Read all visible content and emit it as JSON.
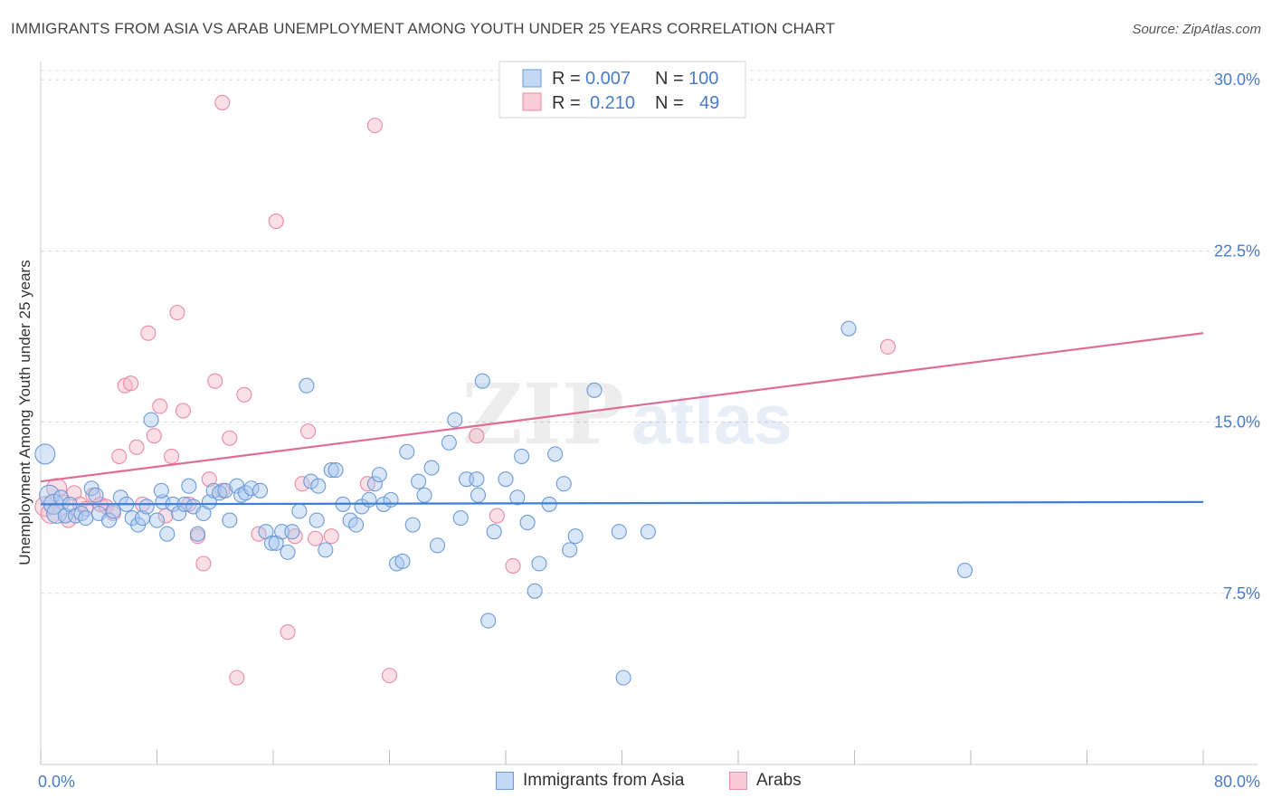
{
  "title": "IMMIGRANTS FROM ASIA VS ARAB UNEMPLOYMENT AMONG YOUTH UNDER 25 YEARS CORRELATION CHART",
  "source": "Source: ZipAtlas.com",
  "colors": {
    "blue_fill": "#a9c8f0",
    "blue_stroke": "#6e9bd6",
    "blue_line": "#3f7fd4",
    "pink_fill": "#f7b7c9",
    "pink_stroke": "#e88aa6",
    "pink_line": "#e06c96",
    "axis_text": "#4a7cc8"
  },
  "legend_top": {
    "row1": {
      "r_label": "R =",
      "r_value": "0.007",
      "n_label": "N =",
      "n_value": "100"
    },
    "row2": {
      "r_label": "R =",
      "r_value": "0.210",
      "n_label": "N =",
      "n_value": "49"
    }
  },
  "chart_data": {
    "type": "scatter",
    "title": "IMMIGRANTS FROM ASIA VS ARAB UNEMPLOYMENT AMONG YOUTH UNDER 25 YEARS CORRELATION CHART",
    "xlabel": "",
    "ylabel": "Unemployment Among Youth under 25 years",
    "xlim": [
      0,
      80
    ],
    "ylim": [
      0,
      30.8
    ],
    "x_tick_labels": [
      "0.0%",
      "80.0%"
    ],
    "y_tick_values": [
      7.5,
      15.0,
      22.5,
      30.0
    ],
    "y_tick_labels": [
      "7.5%",
      "15.0%",
      "22.5%",
      "30.0%"
    ],
    "watermark": "ZIPatlas",
    "series": [
      {
        "name": "Immigrants from Asia",
        "color": "blue",
        "R": 0.007,
        "N": 100,
        "trend": {
          "x": [
            0,
            80
          ],
          "y": [
            11.4,
            11.5
          ]
        },
        "points": [
          [
            0.3,
            13.6
          ],
          [
            0.6,
            11.8
          ],
          [
            0.9,
            11.4
          ],
          [
            1.1,
            11.0
          ],
          [
            1.4,
            11.7
          ],
          [
            1.7,
            10.9
          ],
          [
            2.0,
            11.4
          ],
          [
            2.4,
            10.9
          ],
          [
            2.8,
            11.0
          ],
          [
            3.1,
            10.8
          ],
          [
            3.5,
            12.1
          ],
          [
            3.8,
            11.8
          ],
          [
            4.0,
            11.0
          ],
          [
            4.7,
            10.7
          ],
          [
            5.0,
            11.1
          ],
          [
            5.5,
            11.7
          ],
          [
            5.9,
            11.4
          ],
          [
            6.3,
            10.8
          ],
          [
            6.7,
            10.5
          ],
          [
            7.0,
            10.8
          ],
          [
            7.3,
            11.3
          ],
          [
            7.6,
            15.1
          ],
          [
            8.0,
            10.7
          ],
          [
            8.4,
            11.5
          ],
          [
            8.7,
            10.1
          ],
          [
            9.1,
            11.4
          ],
          [
            9.5,
            11.0
          ],
          [
            9.9,
            11.4
          ],
          [
            10.2,
            12.2
          ],
          [
            10.5,
            11.3
          ],
          [
            10.8,
            10.1
          ],
          [
            11.2,
            11.0
          ],
          [
            11.6,
            11.5
          ],
          [
            11.9,
            12.0
          ],
          [
            12.3,
            11.9
          ],
          [
            12.7,
            12.0
          ],
          [
            13.0,
            10.7
          ],
          [
            13.5,
            12.2
          ],
          [
            13.8,
            11.8
          ],
          [
            14.1,
            11.9
          ],
          [
            14.5,
            12.1
          ],
          [
            15.1,
            12.0
          ],
          [
            15.5,
            10.2
          ],
          [
            15.9,
            9.7
          ],
          [
            16.2,
            9.7
          ],
          [
            16.6,
            10.2
          ],
          [
            17.0,
            9.3
          ],
          [
            17.3,
            10.2
          ],
          [
            17.8,
            11.1
          ],
          [
            18.3,
            16.6
          ],
          [
            18.6,
            12.4
          ],
          [
            19.0,
            10.7
          ],
          [
            19.6,
            9.4
          ],
          [
            20.0,
            12.9
          ],
          [
            20.3,
            12.9
          ],
          [
            20.8,
            11.4
          ],
          [
            21.3,
            10.7
          ],
          [
            21.7,
            10.5
          ],
          [
            22.1,
            11.3
          ],
          [
            22.6,
            11.6
          ],
          [
            23.0,
            12.3
          ],
          [
            23.3,
            12.7
          ],
          [
            23.6,
            11.4
          ],
          [
            24.1,
            11.6
          ],
          [
            24.5,
            8.8
          ],
          [
            24.9,
            8.9
          ],
          [
            25.2,
            13.7
          ],
          [
            25.6,
            10.5
          ],
          [
            26.0,
            12.4
          ],
          [
            26.4,
            11.8
          ],
          [
            26.9,
            13.0
          ],
          [
            27.3,
            9.6
          ],
          [
            28.1,
            14.1
          ],
          [
            28.5,
            15.1
          ],
          [
            28.9,
            10.8
          ],
          [
            29.3,
            12.5
          ],
          [
            30.1,
            11.8
          ],
          [
            30.4,
            16.8
          ],
          [
            30.8,
            6.3
          ],
          [
            31.2,
            10.2
          ],
          [
            32.0,
            12.5
          ],
          [
            32.8,
            11.7
          ],
          [
            33.1,
            13.5
          ],
          [
            33.5,
            10.6
          ],
          [
            34.0,
            7.6
          ],
          [
            34.3,
            8.8
          ],
          [
            35.0,
            11.4
          ],
          [
            35.4,
            13.6
          ],
          [
            36.0,
            12.3
          ],
          [
            36.4,
            9.4
          ],
          [
            36.8,
            10.0
          ],
          [
            38.1,
            16.4
          ],
          [
            39.8,
            10.2
          ],
          [
            40.1,
            3.8
          ],
          [
            41.8,
            10.2
          ],
          [
            55.6,
            19.1
          ],
          [
            63.6,
            8.5
          ],
          [
            30.0,
            12.5
          ],
          [
            19.1,
            12.2
          ],
          [
            8.3,
            12.0
          ]
        ]
      },
      {
        "name": "Arabs",
        "color": "pink",
        "R": 0.21,
        "N": 49,
        "trend": {
          "x": [
            0,
            80
          ],
          "y": [
            12.4,
            18.9
          ]
        },
        "points": [
          [
            0.3,
            11.3
          ],
          [
            0.7,
            11.0
          ],
          [
            1.1,
            12.1
          ],
          [
            1.5,
            11.5
          ],
          [
            1.9,
            10.7
          ],
          [
            2.3,
            11.9
          ],
          [
            2.7,
            11.4
          ],
          [
            3.1,
            11.2
          ],
          [
            3.6,
            11.8
          ],
          [
            4.1,
            11.4
          ],
          [
            4.5,
            11.3
          ],
          [
            5.0,
            11.0
          ],
          [
            5.4,
            13.5
          ],
          [
            5.8,
            16.6
          ],
          [
            6.2,
            16.7
          ],
          [
            6.6,
            13.9
          ],
          [
            7.0,
            11.4
          ],
          [
            7.4,
            18.9
          ],
          [
            7.8,
            14.4
          ],
          [
            8.2,
            15.7
          ],
          [
            8.6,
            10.9
          ],
          [
            9.0,
            13.5
          ],
          [
            9.4,
            19.8
          ],
          [
            9.8,
            15.5
          ],
          [
            10.2,
            11.4
          ],
          [
            10.8,
            10.0
          ],
          [
            11.2,
            8.8
          ],
          [
            11.6,
            12.5
          ],
          [
            12.0,
            16.8
          ],
          [
            12.5,
            29.0
          ],
          [
            13.0,
            14.3
          ],
          [
            13.5,
            3.8
          ],
          [
            14.0,
            16.2
          ],
          [
            15.0,
            10.1
          ],
          [
            16.2,
            23.8
          ],
          [
            17.0,
            5.8
          ],
          [
            17.5,
            10.0
          ],
          [
            18.0,
            12.3
          ],
          [
            18.4,
            14.6
          ],
          [
            18.9,
            9.9
          ],
          [
            20.0,
            10.0
          ],
          [
            22.5,
            12.3
          ],
          [
            23.0,
            28.0
          ],
          [
            24.0,
            3.9
          ],
          [
            30.0,
            14.4
          ],
          [
            31.4,
            10.9
          ],
          [
            32.5,
            8.7
          ],
          [
            58.3,
            18.3
          ],
          [
            12.5,
            12.0
          ]
        ]
      }
    ]
  },
  "bottom_legend": {
    "items": [
      {
        "label": "Immigrants from Asia"
      },
      {
        "label": "Arabs"
      }
    ]
  }
}
